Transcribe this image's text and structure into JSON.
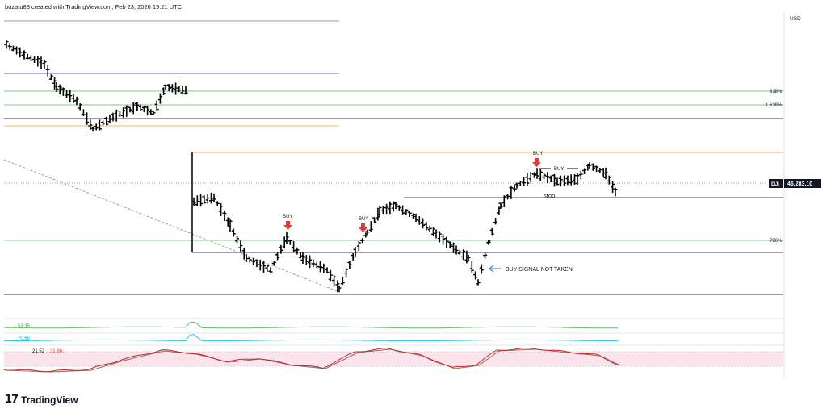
{
  "header": {
    "byline": "buzatu88 created with TradingView.com, Feb 23, 2026 19:21 UTC"
  },
  "logo": {
    "text": "TradingView"
  },
  "colors": {
    "price": "#000000",
    "buy_arrow": "#e53935",
    "signal_arrow": "#2962ff",
    "level_green": "#81c784",
    "level_orange": "#ffb74d",
    "level_purple": "#7e57c2",
    "level_grey": "#9e9e9e",
    "level_black": "#424242",
    "ind_green": "#66bb6a",
    "ind_cyan": "#26c6da",
    "stoch_k": "#c62828",
    "stoch_d": "#8d6e63",
    "stoch_band": "#fce4ec"
  },
  "chart_data": {
    "type": "ohlc",
    "symbol": "DJI",
    "last_price": "46,283.10",
    "currency": "USD",
    "fib_labels": [
      "618%",
      "1.618%",
      "786%"
    ],
    "annotations": {
      "buy": "BUY",
      "stop": "stop",
      "signal_not_taken": "BUY SIGNAL NOT TAKEN"
    },
    "indicators": {
      "ind1_value": "53.35",
      "ind2_value": "70.65",
      "stoch_k_value": "21.52",
      "stoch_d_value": "31.86"
    }
  }
}
